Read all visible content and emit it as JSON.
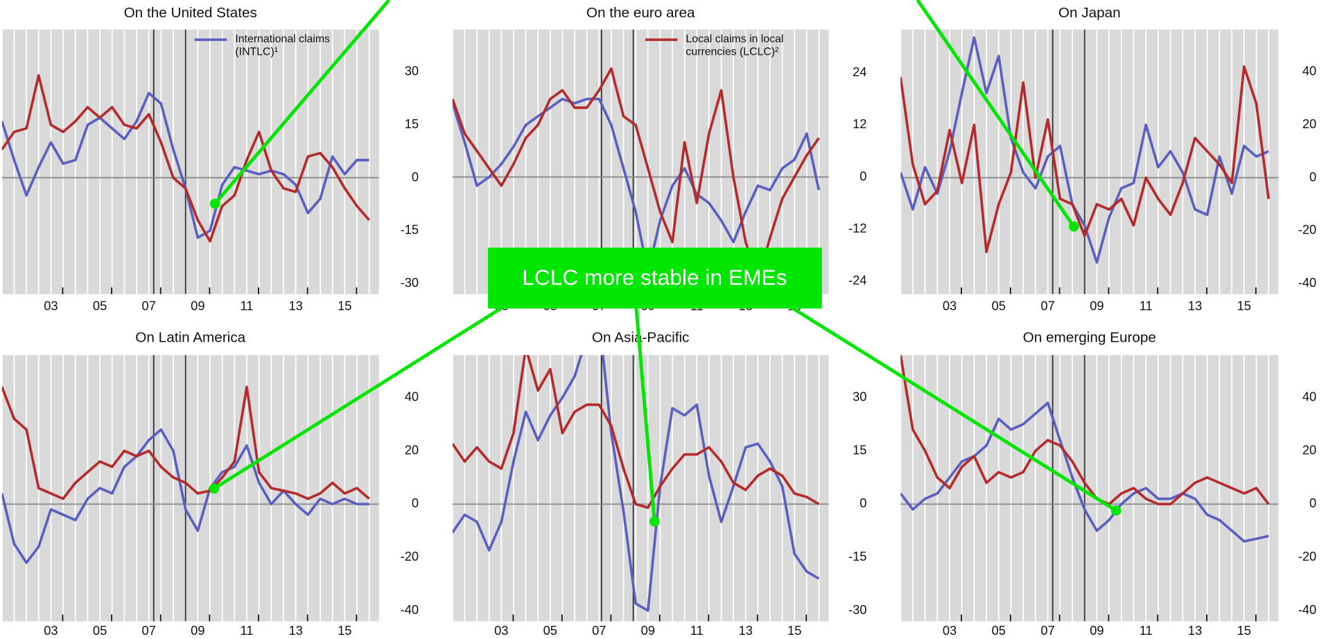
{
  "chart_data": [
    {
      "type": "line",
      "title": "On the United States",
      "x": [
        1,
        1.5,
        2,
        2.5,
        3,
        3.5,
        4,
        4.5,
        5,
        5.5,
        6,
        6.5,
        7,
        7.5,
        8,
        8.5,
        9,
        9.5,
        10,
        10.5,
        11,
        11.5,
        12,
        12.5,
        13,
        13.5,
        14,
        14.5,
        15,
        15.5,
        16
      ],
      "xlim": [
        1,
        16.4
      ],
      "xticks": [
        {
          "value": 3,
          "label": "03"
        },
        {
          "value": 5,
          "label": "05"
        },
        {
          "value": 7,
          "label": "07"
        },
        {
          "value": 9,
          "label": "09"
        },
        {
          "value": 11,
          "label": "11"
        },
        {
          "value": 13,
          "label": "13"
        },
        {
          "value": 15,
          "label": "15"
        }
      ],
      "ylim": [
        -33,
        42
      ],
      "yticks": [
        -30,
        -15,
        0,
        15,
        30
      ],
      "event_lines": [
        7.2,
        8.5
      ],
      "series": [
        {
          "name": "International claims (INTLC)¹",
          "color": "#5a5fc2",
          "values": [
            16,
            5,
            -5,
            3,
            10,
            4,
            5,
            15,
            17,
            14,
            11,
            16,
            24,
            21,
            8,
            -3,
            -17,
            -15,
            -2,
            3,
            2,
            1,
            2,
            1,
            -2,
            -10,
            -6,
            6,
            1,
            5,
            5
          ]
        },
        {
          "color": "#b52a2a",
          "values": [
            8,
            13,
            14,
            29,
            15,
            13,
            16,
            20,
            17,
            20,
            15,
            14,
            18,
            10,
            0,
            -3,
            -12,
            -18,
            -8,
            -5,
            5,
            13,
            2,
            -3,
            -4,
            6,
            7,
            3,
            -3,
            -8,
            -12
          ]
        }
      ]
    },
    {
      "type": "line",
      "title": "On the euro area",
      "x": [
        1,
        1.5,
        2,
        2.5,
        3,
        3.5,
        4,
        4.5,
        5,
        5.5,
        6,
        6.5,
        7,
        7.5,
        8,
        8.5,
        9,
        9.5,
        10,
        10.5,
        11,
        11.5,
        12,
        12.5,
        13,
        13.5,
        14,
        14.5,
        15,
        15.5,
        16
      ],
      "xlim": [
        1,
        16.4
      ],
      "xticks": [
        {
          "value": 3,
          "label": "03"
        },
        {
          "value": 5,
          "label": "05"
        },
        {
          "value": 7,
          "label": "07"
        },
        {
          "value": 9,
          "label": "09"
        },
        {
          "value": 11,
          "label": "11"
        },
        {
          "value": 13,
          "label": "13"
        },
        {
          "value": 15,
          "label": "15"
        }
      ],
      "ylim": [
        -27,
        34
      ],
      "yticks": [
        -24,
        -12,
        0,
        12,
        24
      ],
      "event_lines": [
        7.1,
        8.4
      ],
      "series": [
        {
          "color": "#5a5fc2",
          "values": [
            17,
            8,
            -2,
            0,
            3,
            7,
            12,
            14,
            16,
            18,
            17,
            18,
            18,
            12,
            2,
            -8,
            -22,
            -10,
            -2,
            2,
            -4,
            -6,
            -10,
            -15,
            -8,
            -2,
            -3,
            2,
            4,
            10,
            -3
          ]
        },
        {
          "name": "Local claims in local currencies (LCLC)²",
          "color": "#b52a2a",
          "values": [
            18,
            10,
            6,
            2,
            -2,
            3,
            9,
            12,
            18,
            20,
            16,
            16,
            20,
            25,
            14,
            12,
            2,
            -8,
            -15,
            8,
            -6,
            10,
            20,
            0,
            -15,
            -24,
            -14,
            -5,
            0,
            5,
            9
          ]
        }
      ]
    },
    {
      "type": "line",
      "title": "On Japan",
      "x": [
        1,
        1.5,
        2,
        2.5,
        3,
        3.5,
        4,
        4.5,
        5,
        5.5,
        6,
        6.5,
        7,
        7.5,
        8,
        8.5,
        9,
        9.5,
        10,
        10.5,
        11,
        11.5,
        12,
        12.5,
        13,
        13.5,
        14,
        14.5,
        15,
        15.5,
        16
      ],
      "xlim": [
        1,
        16.4
      ],
      "xticks": [
        {
          "value": 3,
          "label": "03"
        },
        {
          "value": 5,
          "label": "05"
        },
        {
          "value": 7,
          "label": "07"
        },
        {
          "value": 9,
          "label": "09"
        },
        {
          "value": 11,
          "label": "11"
        },
        {
          "value": 13,
          "label": "13"
        },
        {
          "value": 15,
          "label": "15"
        }
      ],
      "ylim": [
        -44,
        56
      ],
      "yticks": [
        -40,
        -20,
        0,
        20,
        40
      ],
      "event_lines": [
        7.2,
        8.5
      ],
      "series": [
        {
          "color": "#5a5fc2",
          "values": [
            2,
            -12,
            4,
            -6,
            10,
            32,
            53,
            32,
            46,
            15,
            2,
            -4,
            8,
            12,
            -10,
            -18,
            -32,
            -15,
            -4,
            -2,
            20,
            4,
            10,
            2,
            -12,
            -14,
            8,
            -6,
            12,
            8,
            10
          ]
        },
        {
          "color": "#b52a2a",
          "values": [
            38,
            5,
            -10,
            -5,
            18,
            -2,
            20,
            -28,
            -10,
            2,
            36,
            0,
            22,
            -8,
            -10,
            -22,
            -10,
            -12,
            -8,
            -18,
            0,
            -8,
            -14,
            -2,
            15,
            10,
            5,
            -2,
            42,
            28,
            -8
          ]
        }
      ]
    },
    {
      "type": "line",
      "title": "On Latin America",
      "x": [
        1,
        1.5,
        2,
        2.5,
        3,
        3.5,
        4,
        4.5,
        5,
        5.5,
        6,
        6.5,
        7,
        7.5,
        8,
        8.5,
        9,
        9.5,
        10,
        10.5,
        11,
        11.5,
        12,
        12.5,
        13,
        13.5,
        14,
        14.5,
        15,
        15.5,
        16
      ],
      "xlim": [
        1,
        16.4
      ],
      "xticks": [
        {
          "value": 3,
          "label": "03"
        },
        {
          "value": 5,
          "label": "05"
        },
        {
          "value": 7,
          "label": "07"
        },
        {
          "value": 9,
          "label": "09"
        },
        {
          "value": 11,
          "label": "11"
        },
        {
          "value": 13,
          "label": "13"
        },
        {
          "value": 15,
          "label": "15"
        }
      ],
      "ylim": [
        -44,
        56
      ],
      "yticks": [
        -40,
        -20,
        0,
        20,
        40
      ],
      "event_lines": [
        7.2,
        8.5
      ],
      "series": [
        {
          "color": "#5a5fc2",
          "values": [
            4,
            -15,
            -22,
            -16,
            -2,
            -4,
            -6,
            2,
            6,
            4,
            14,
            18,
            24,
            28,
            20,
            -2,
            -10,
            6,
            12,
            14,
            22,
            8,
            0,
            5,
            0,
            -4,
            2,
            0,
            2,
            0,
            0
          ]
        },
        {
          "color": "#b52a2a",
          "values": [
            44,
            32,
            28,
            6,
            4,
            2,
            8,
            12,
            16,
            14,
            20,
            18,
            20,
            14,
            10,
            8,
            4,
            5,
            10,
            16,
            44,
            12,
            6,
            5,
            4,
            2,
            4,
            8,
            4,
            6,
            2
          ]
        }
      ]
    },
    {
      "type": "line",
      "title": "On Asia-Pacific",
      "x": [
        1,
        1.5,
        2,
        2.5,
        3,
        3.5,
        4,
        4.5,
        5,
        5.5,
        6,
        6.5,
        7,
        7.5,
        8,
        8.5,
        9,
        9.5,
        10,
        10.5,
        11,
        11.5,
        12,
        12.5,
        13,
        13.5,
        14,
        14.5,
        15,
        15.5,
        16
      ],
      "xlim": [
        1,
        16.4
      ],
      "xticks": [
        {
          "value": 3,
          "label": "03"
        },
        {
          "value": 5,
          "label": "05"
        },
        {
          "value": 7,
          "label": "07"
        },
        {
          "value": 9,
          "label": "09"
        },
        {
          "value": 11,
          "label": "11"
        },
        {
          "value": 13,
          "label": "13"
        },
        {
          "value": 15,
          "label": "15"
        }
      ],
      "ylim": [
        -33,
        42
      ],
      "yticks": [
        -30,
        -15,
        0,
        15,
        30
      ],
      "event_lines": [
        7.1,
        8.4
      ],
      "series": [
        {
          "color": "#5a5fc2",
          "values": [
            -8,
            -3,
            -5,
            -13,
            -5,
            12,
            26,
            18,
            25,
            30,
            36,
            47,
            52,
            20,
            -2,
            -28,
            -30,
            5,
            27,
            25,
            28,
            8,
            -5,
            5,
            16,
            17,
            12,
            5,
            -14,
            -19,
            -21
          ]
        },
        {
          "color": "#b52a2a",
          "values": [
            17,
            12,
            16,
            12,
            10,
            20,
            44,
            32,
            38,
            20,
            26,
            28,
            28,
            22,
            10,
            0,
            -1,
            5,
            10,
            14,
            14,
            16,
            12,
            6,
            4,
            8,
            10,
            8,
            3,
            2,
            0
          ]
        }
      ]
    },
    {
      "type": "line",
      "title": "On emerging Europe",
      "x": [
        1,
        1.5,
        2,
        2.5,
        3,
        3.5,
        4,
        4.5,
        5,
        5.5,
        6,
        6.5,
        7,
        7.5,
        8,
        8.5,
        9,
        9.5,
        10,
        10.5,
        11,
        11.5,
        12,
        12.5,
        13,
        13.5,
        14,
        14.5,
        15,
        15.5,
        16
      ],
      "xlim": [
        1,
        16.4
      ],
      "xticks": [
        {
          "value": 3,
          "label": "03"
        },
        {
          "value": 5,
          "label": "05"
        },
        {
          "value": 7,
          "label": "07"
        },
        {
          "value": 9,
          "label": "09"
        },
        {
          "value": 11,
          "label": "11"
        },
        {
          "value": 13,
          "label": "13"
        },
        {
          "value": 15,
          "label": "15"
        }
      ],
      "ylim": [
        -44,
        56
      ],
      "yticks": [
        -40,
        -20,
        0,
        20,
        40
      ],
      "event_lines": [
        7.2,
        8.5
      ],
      "series": [
        {
          "color": "#5a5fc2",
          "values": [
            4,
            -2,
            2,
            4,
            10,
            16,
            18,
            22,
            32,
            28,
            30,
            34,
            38,
            24,
            10,
            -2,
            -10,
            -6,
            0,
            4,
            6,
            2,
            2,
            4,
            2,
            -4,
            -6,
            -10,
            -14,
            -13,
            -12
          ]
        },
        {
          "color": "#b52a2a",
          "values": [
            56,
            28,
            20,
            10,
            6,
            14,
            18,
            8,
            12,
            10,
            12,
            20,
            24,
            22,
            16,
            8,
            2,
            0,
            4,
            6,
            2,
            0,
            0,
            4,
            8,
            10,
            8,
            6,
            4,
            6,
            0
          ]
        }
      ]
    }
  ],
  "annotation": {
    "text": "LCLC more stable in EMEs"
  }
}
